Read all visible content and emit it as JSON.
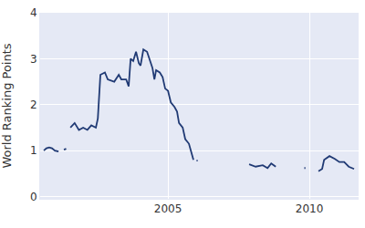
{
  "chart_data": {
    "type": "line",
    "y_label": "World Ranking Points",
    "x": [
      2000.61,
      2000.7,
      2000.8,
      2000.9,
      2001.0,
      2001.13,
      null,
      2001.32,
      2001.4,
      null,
      2001.55,
      2001.7,
      2001.85,
      2002.0,
      2002.15,
      2002.29,
      2002.45,
      2002.52,
      2002.61,
      2002.77,
      2002.87,
      2003.1,
      2003.26,
      2003.35,
      2003.52,
      2003.61,
      2003.68,
      2003.77,
      2003.87,
      2003.97,
      2004.03,
      2004.13,
      2004.26,
      2004.35,
      2004.45,
      2004.52,
      2004.58,
      2004.71,
      2004.81,
      2004.9,
      2005.0,
      2005.1,
      2005.23,
      2005.32,
      2005.39,
      2005.52,
      2005.61,
      2005.74,
      2005.84,
      2005.9,
      null,
      2006.01,
      2006.05,
      null,
      2007.87,
      2008.1,
      2008.35,
      2008.52,
      2008.65,
      2008.81,
      null,
      2009.82,
      2009.86,
      null,
      2010.32,
      2010.45,
      2010.52,
      2010.71,
      2010.9,
      2011.06,
      2011.23,
      2011.39,
      2011.58
    ],
    "values": [
      1.0,
      1.05,
      1.07,
      1.05,
      1.0,
      0.98,
      null,
      1.02,
      1.04,
      null,
      1.5,
      1.6,
      1.45,
      1.5,
      1.45,
      1.55,
      1.5,
      1.7,
      2.65,
      2.7,
      2.55,
      2.5,
      2.65,
      2.55,
      2.55,
      2.4,
      3.0,
      2.95,
      3.15,
      2.9,
      2.85,
      3.2,
      3.15,
      3.0,
      2.8,
      2.55,
      2.75,
      2.7,
      2.6,
      2.35,
      2.3,
      2.05,
      1.95,
      1.85,
      1.6,
      1.5,
      1.25,
      1.15,
      0.95,
      0.8,
      null,
      0.78,
      0.78,
      null,
      0.7,
      0.65,
      0.68,
      0.62,
      0.72,
      0.65,
      null,
      0.62,
      0.62,
      null,
      0.55,
      0.6,
      0.8,
      0.88,
      0.82,
      0.75,
      0.75,
      0.65,
      0.6
    ],
    "color": "#203a74",
    "xlim": [
      2000.48,
      2011.74
    ],
    "xticks": [
      2005,
      2010
    ],
    "ylim": [
      -0.05,
      4
    ],
    "yticks": [
      0,
      1,
      2,
      3,
      4
    ],
    "grid": true
  }
}
